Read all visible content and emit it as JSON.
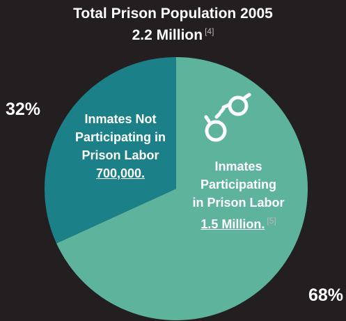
{
  "title": {
    "line1": "Total Prison Population 2005",
    "line2": "2.2 Million",
    "ref": "[4]"
  },
  "chart_data": {
    "type": "pie",
    "title": "Total Prison Population 2005 2.2 Million",
    "slices": [
      {
        "label": "Inmates Not Participating in Prison Labor",
        "value": 700000,
        "value_text": "700,000.",
        "percent": 32,
        "percent_text": "32%",
        "color": "#1b8088"
      },
      {
        "label": "Inmates Participating in Prison Labor",
        "value": 1500000,
        "value_text": "1.5 Million.",
        "percent": 68,
        "percent_text": "68%",
        "color": "#5db39c",
        "ref": "[5]"
      }
    ]
  },
  "labels": {
    "not_line1": "Inmates Not",
    "not_line2": "Participating in",
    "not_line3": "Prison Labor",
    "part_line1": "Inmates",
    "part_line2": "Participating",
    "part_line3": "in Prison Labor"
  },
  "icons": {
    "handcuffs": "handcuffs-icon"
  },
  "colors": {
    "background": "#231f20",
    "text": "#ffffff"
  }
}
